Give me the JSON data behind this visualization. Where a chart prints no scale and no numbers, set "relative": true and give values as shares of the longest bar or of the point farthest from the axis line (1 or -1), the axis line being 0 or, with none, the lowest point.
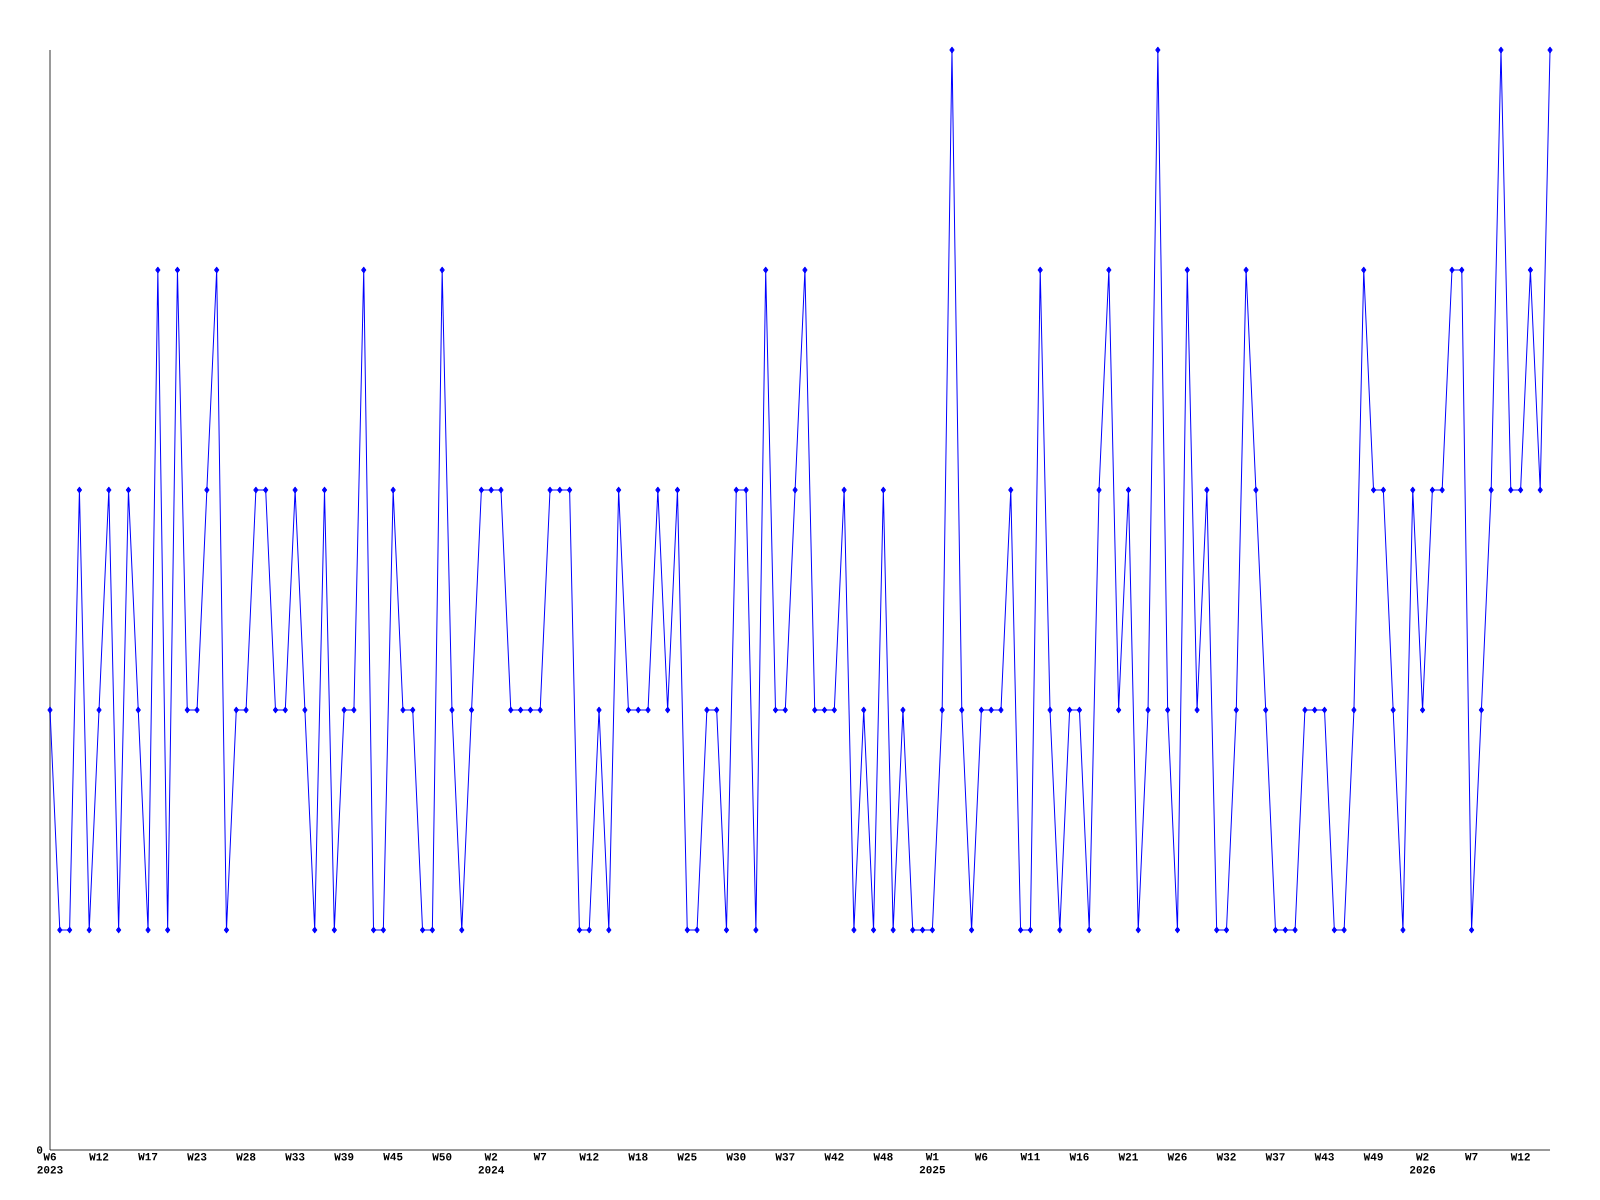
{
  "chart_data": {
    "type": "line",
    "relative": true,
    "color": "#0000ff",
    "marker": "diamond",
    "annotations": [
      "0"
    ],
    "categories": [
      "W6 2023",
      null,
      null,
      null,
      null,
      "W12",
      null,
      null,
      null,
      null,
      "W17",
      null,
      null,
      null,
      null,
      "W23",
      null,
      null,
      null,
      null,
      "W28",
      null,
      null,
      null,
      null,
      "W33",
      null,
      null,
      null,
      null,
      "W39",
      null,
      null,
      null,
      null,
      "W45",
      null,
      null,
      null,
      null,
      "W50",
      null,
      null,
      null,
      null,
      "W2 2024",
      null,
      null,
      null,
      null,
      "W7",
      null,
      null,
      null,
      null,
      "W12",
      null,
      null,
      null,
      null,
      "W18",
      null,
      null,
      null,
      null,
      "W25",
      null,
      null,
      null,
      null,
      "W30",
      null,
      null,
      null,
      null,
      "W37",
      null,
      null,
      null,
      null,
      "W42",
      null,
      null,
      null,
      null,
      "W48",
      null,
      null,
      null,
      null,
      "W1 2025",
      null,
      null,
      null,
      null,
      "W6",
      null,
      null,
      null,
      null,
      "W11",
      null,
      null,
      null,
      null,
      "W16",
      null,
      null,
      null,
      null,
      "W21",
      null,
      null,
      null,
      null,
      "W26",
      null,
      null,
      null,
      null,
      "W32",
      null,
      null,
      null,
      null,
      "W37",
      null,
      null,
      null,
      null,
      "W43",
      null,
      null,
      null,
      null,
      "W49",
      null,
      null,
      null,
      null,
      "W2 2026",
      null,
      null,
      null,
      null,
      "W7",
      null,
      null,
      null,
      null,
      "W12",
      null,
      null,
      null
    ],
    "values": [
      0.4,
      0.2,
      0.2,
      0.6,
      0.2,
      0.4,
      0.6,
      0.2,
      0.6,
      0.4,
      0.2,
      0.8,
      0.2,
      0.8,
      0.4,
      0.4,
      0.6,
      0.8,
      0.2,
      0.4,
      0.4,
      0.6,
      0.6,
      0.4,
      0.4,
      0.6,
      0.4,
      0.2,
      0.6,
      0.2,
      0.4,
      0.4,
      0.8,
      0.2,
      0.2,
      0.6,
      0.4,
      0.4,
      0.2,
      0.2,
      0.8,
      0.4,
      0.2,
      0.4,
      0.6,
      0.6,
      0.6,
      0.4,
      0.4,
      0.4,
      0.4,
      0.6,
      0.6,
      0.6,
      0.2,
      0.2,
      0.4,
      0.2,
      0.6,
      0.4,
      0.4,
      0.4,
      0.6,
      0.4,
      0.6,
      0.2,
      0.2,
      0.4,
      0.4,
      0.2,
      0.6,
      0.6,
      0.2,
      0.8,
      0.4,
      0.4,
      0.6,
      0.8,
      0.4,
      0.4,
      0.4,
      0.6,
      0.2,
      0.4,
      0.2,
      0.6,
      0.2,
      0.4,
      0.2,
      0.2,
      0.2,
      0.4,
      1,
      0.4,
      0.2,
      0.4,
      0.4,
      0.4,
      0.6,
      0.2,
      0.2,
      0.8,
      0.4,
      0.2,
      0.4,
      0.4,
      0.2,
      0.6,
      0.8,
      0.4,
      0.6,
      0.2,
      0.4,
      1,
      0.4,
      0.2,
      0.8,
      0.4,
      0.6,
      0.2,
      0.2,
      0.4,
      0.8,
      0.6,
      0.4,
      0.2,
      0.2,
      0.2,
      0.4,
      0.4,
      0.4,
      0.2,
      0.2,
      0.4,
      0.8,
      0.6,
      0.6,
      0.4,
      0.2,
      0.6,
      0.4,
      0.6,
      0.6,
      0.8,
      0.8,
      0.2,
      0.4,
      0.6,
      1,
      0.6,
      0.6,
      0.8,
      0.6,
      1
    ]
  }
}
